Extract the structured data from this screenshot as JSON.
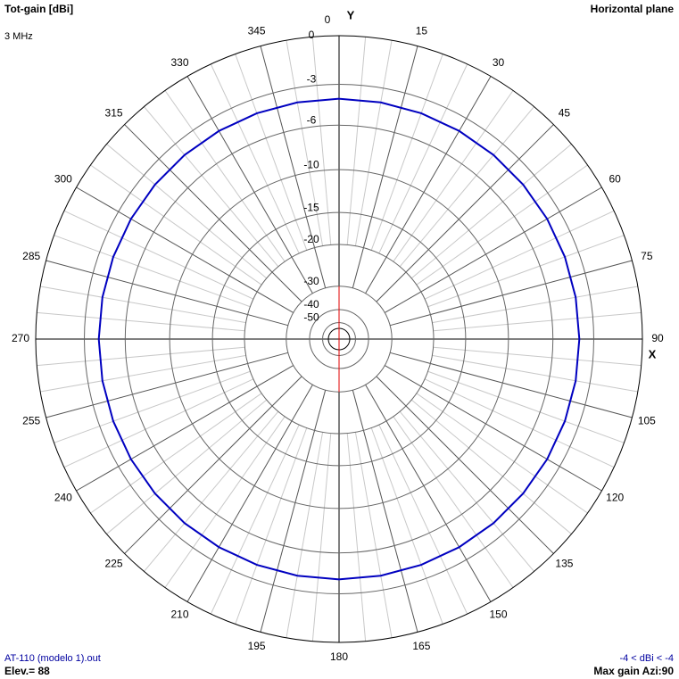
{
  "chart_data": {
    "type": "polar",
    "title": "Tot-gain [dBi]",
    "subtitle": "Horizontal plane",
    "frequency": "3 MHz",
    "y_axis_label": "Y",
    "x_axis_label": "X",
    "footer_left": {
      "file": "AT-110 (modelo 1).out",
      "elevation": "Elev.= 88"
    },
    "footer_right": {
      "range": "-4 < dBi < -4",
      "max_gain": "Max gain Azi:90"
    },
    "thetaticks": [
      0,
      15,
      30,
      45,
      60,
      75,
      90,
      105,
      120,
      135,
      150,
      165,
      180,
      195,
      210,
      225,
      240,
      255,
      270,
      285,
      300,
      315,
      330,
      345
    ],
    "rticks": [
      0,
      -3,
      -6,
      -10,
      -15,
      -20,
      -30,
      -40,
      -50
    ],
    "series": [
      {
        "color": "#0000c0",
        "theta": [
          0,
          10,
          20,
          30,
          40,
          50,
          60,
          70,
          80,
          90,
          100,
          110,
          120,
          130,
          140,
          150,
          160,
          170,
          180,
          190,
          200,
          210,
          220,
          230,
          240,
          250,
          260,
          270,
          280,
          290,
          300,
          310,
          320,
          330,
          340,
          350
        ],
        "values": [
          -4,
          -4,
          -4,
          -4,
          -4,
          -4,
          -4,
          -4,
          -4,
          -4,
          -4,
          -4,
          -4,
          -4,
          -4,
          -4,
          -4,
          -4,
          -4,
          -4,
          -4,
          -4,
          -4,
          -4,
          -4,
          -4,
          -4,
          -4,
          -4,
          -4,
          -4,
          -4,
          -4,
          -4,
          -4,
          -4
        ]
      }
    ]
  }
}
